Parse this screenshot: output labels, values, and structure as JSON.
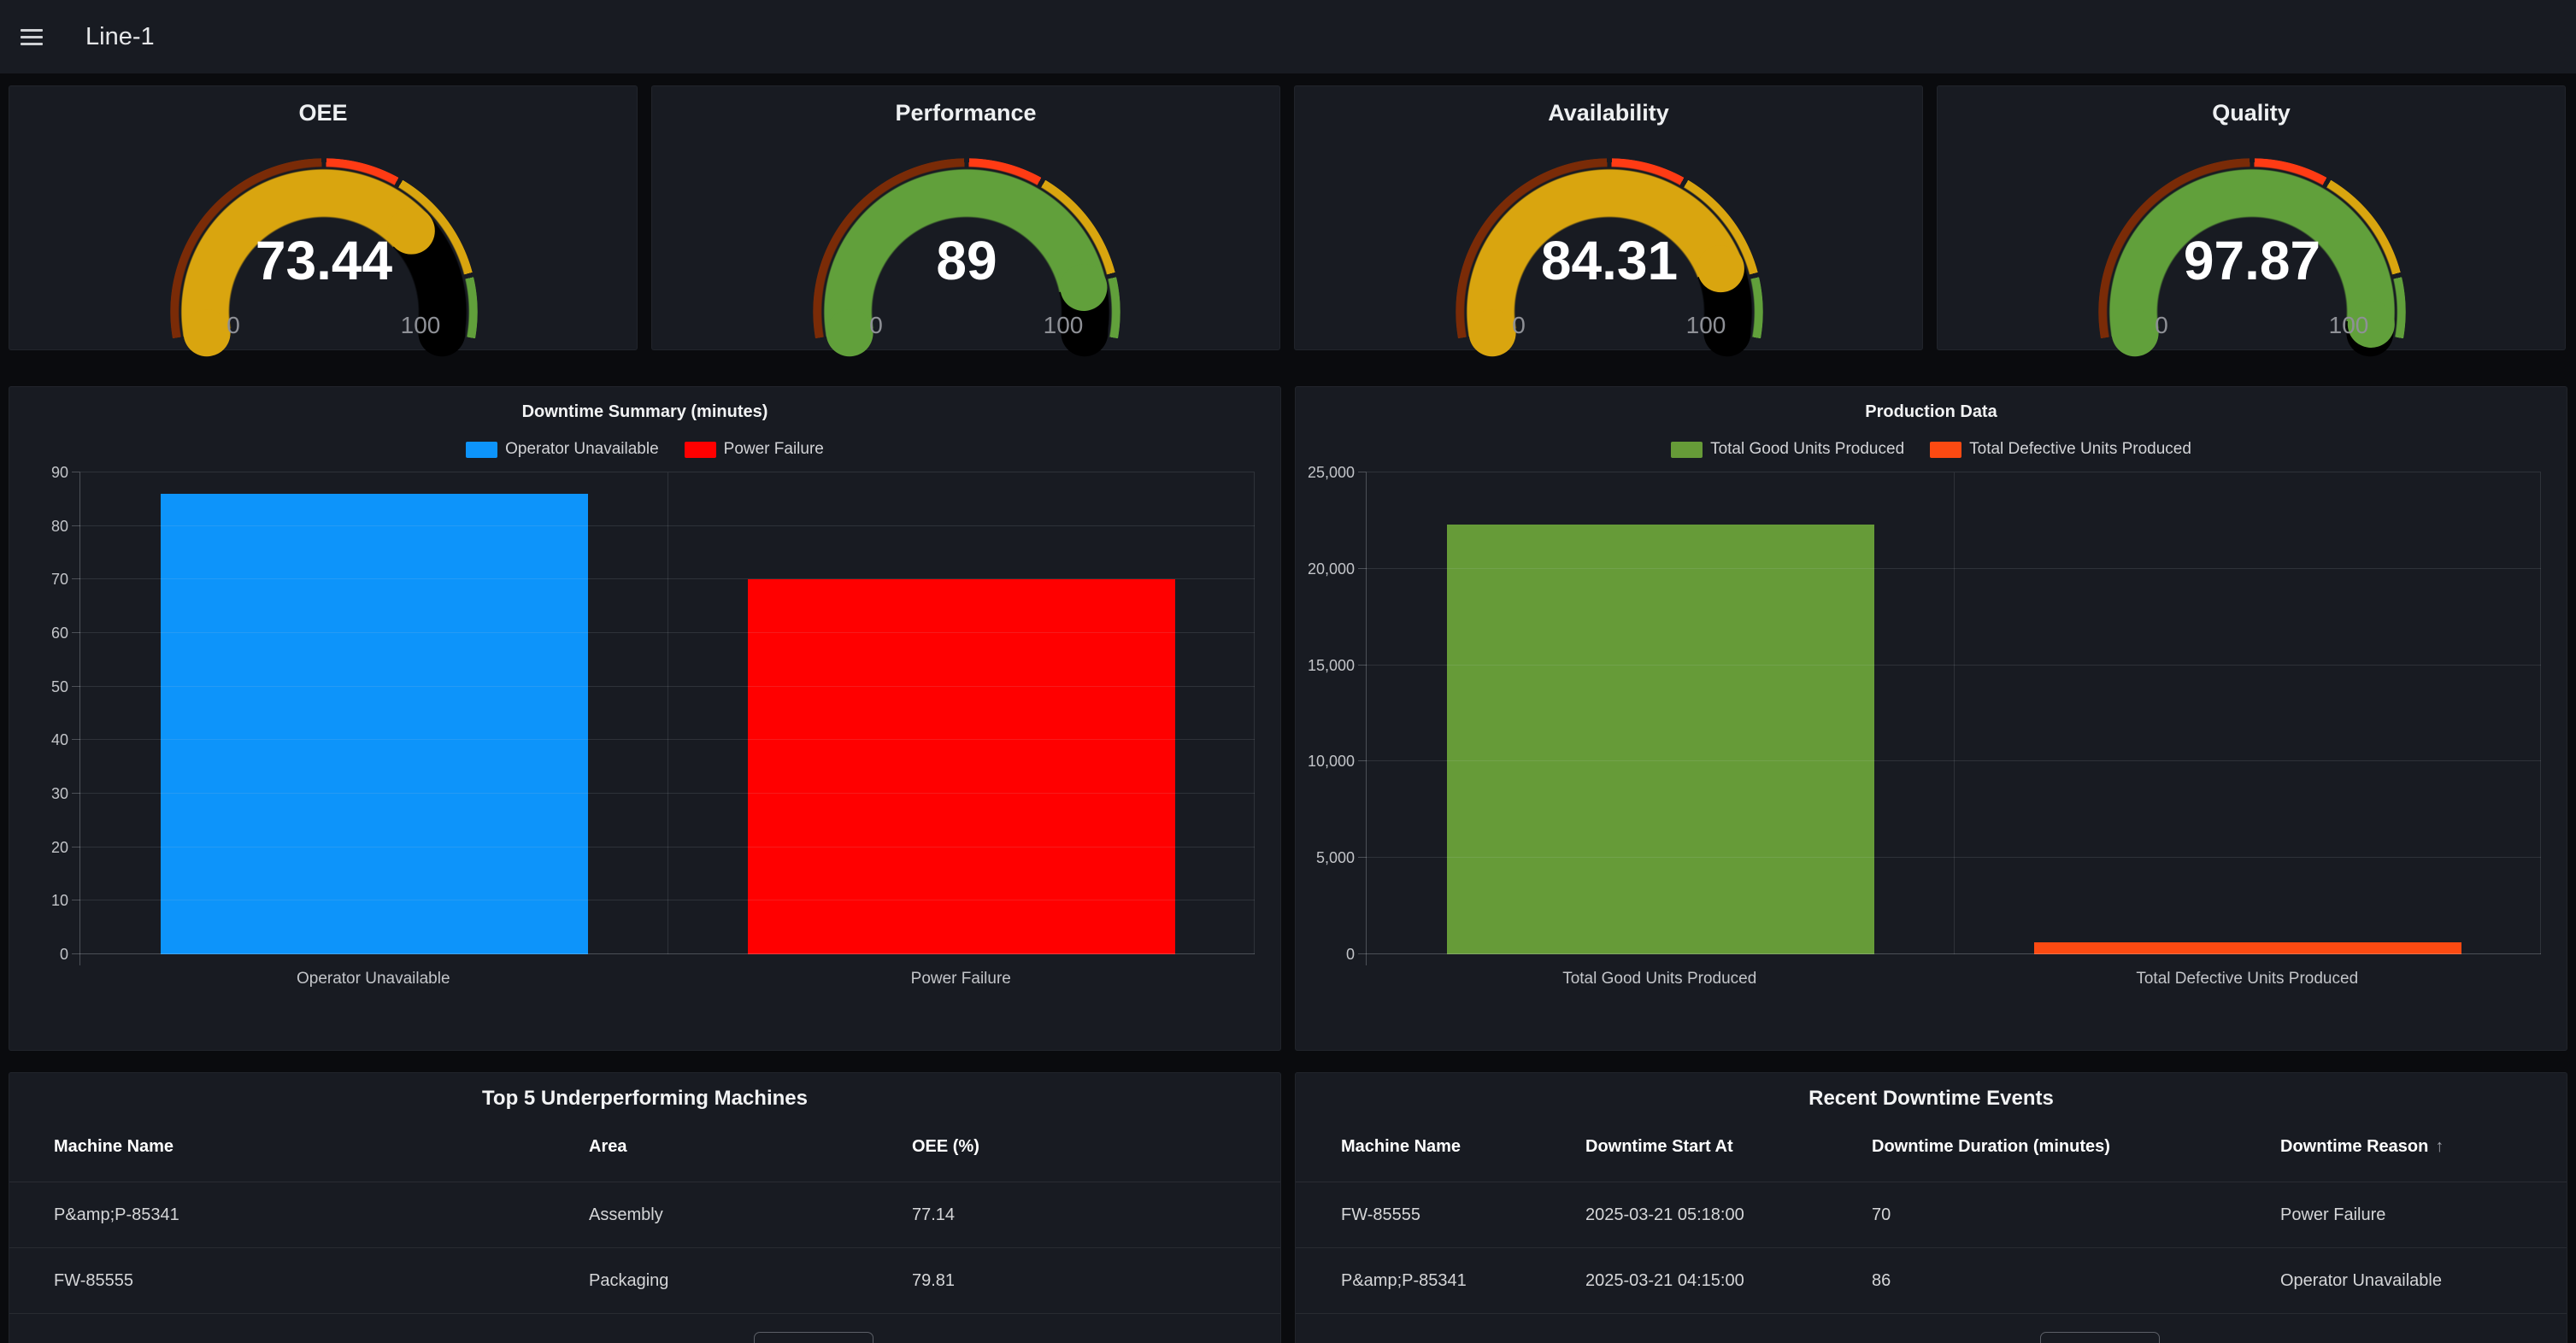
{
  "topbar": {
    "title": "Line-1",
    "menu_icon": "hamburger"
  },
  "colors": {
    "page_bg": "#0a0b0e",
    "panel_bg": "#181b22",
    "bar_blue": "#0d94fa",
    "bar_red": "#ff0000",
    "bar_green": "#669b38",
    "bar_orange": "#fc4a12",
    "gauge_yellow": "#d9a50f",
    "gauge_green": "#61a03b"
  },
  "gauge_scale": {
    "min": 0,
    "max": 100,
    "min_label": "0",
    "max_label": "100",
    "thresholds": [
      {
        "from": 0,
        "to": 50,
        "color": "#7a2b07"
      },
      {
        "from": 50,
        "to": 65,
        "color": "#ff3b14"
      },
      {
        "from": 65,
        "to": 88,
        "color": "#d9a50f"
      },
      {
        "from": 88,
        "to": 100,
        "color": "#61a03b"
      }
    ]
  },
  "gauges": [
    {
      "title": "OEE",
      "value": "73.44",
      "value_num": 73.44,
      "color": "#d9a50f"
    },
    {
      "title": "Performance",
      "value": "89",
      "value_num": 89,
      "color": "#61a03b"
    },
    {
      "title": "Availability",
      "value": "84.31",
      "value_num": 84.31,
      "color": "#d9a50f"
    },
    {
      "title": "Quality",
      "value": "97.87",
      "value_num": 97.87,
      "color": "#61a03b"
    }
  ],
  "chart_data": [
    {
      "type": "bar",
      "title": "Downtime Summary (minutes)",
      "categories": [
        "Operator Unavailable",
        "Power Failure"
      ],
      "values": [
        86,
        70
      ],
      "colors": [
        "#0d94fa",
        "#ff0000"
      ],
      "legend": [
        "Operator Unavailable",
        "Power Failure"
      ],
      "legend_position": "top",
      "grid": true,
      "xlabel": "",
      "ylabel": "",
      "ylim": [
        0,
        90
      ],
      "yticks": [
        "0",
        "10",
        "20",
        "30",
        "40",
        "50",
        "60",
        "70",
        "80",
        "90"
      ]
    },
    {
      "type": "bar",
      "title": "Production Data",
      "categories": [
        "Total Good Units Produced",
        "Total Defective Units Produced"
      ],
      "values": [
        22300,
        600
      ],
      "colors": [
        "#669b38",
        "#fc4a12"
      ],
      "legend": [
        "Total Good Units Produced",
        "Total Defective Units Produced"
      ],
      "legend_position": "top",
      "grid": true,
      "xlabel": "",
      "ylabel": "",
      "ylim": [
        0,
        25000
      ],
      "yticks": [
        "0",
        "5,000",
        "10,000",
        "15,000",
        "20,000",
        "25,000"
      ]
    }
  ],
  "tables": [
    {
      "title": "Top 5 Underperforming Machines",
      "columns": [
        "Machine Name",
        "Area",
        "OEE (%)"
      ],
      "rows": [
        [
          "P&amp;P-85341",
          "Assembly",
          "77.14"
        ],
        [
          "FW-85555",
          "Packaging",
          "79.81"
        ]
      ]
    },
    {
      "title": "Recent Downtime Events",
      "columns": [
        "Machine Name",
        "Downtime Start At",
        "Downtime Duration (minutes)",
        "Downtime Reason"
      ],
      "sort_column": "Downtime Reason",
      "sort_icon": "↑",
      "rows": [
        [
          "FW-85555",
          "2025-03-21 05:18:00",
          "70",
          "Power Failure"
        ],
        [
          "P&amp;P-85341",
          "2025-03-21 04:15:00",
          "86",
          "Operator Unavailable"
        ]
      ]
    }
  ]
}
